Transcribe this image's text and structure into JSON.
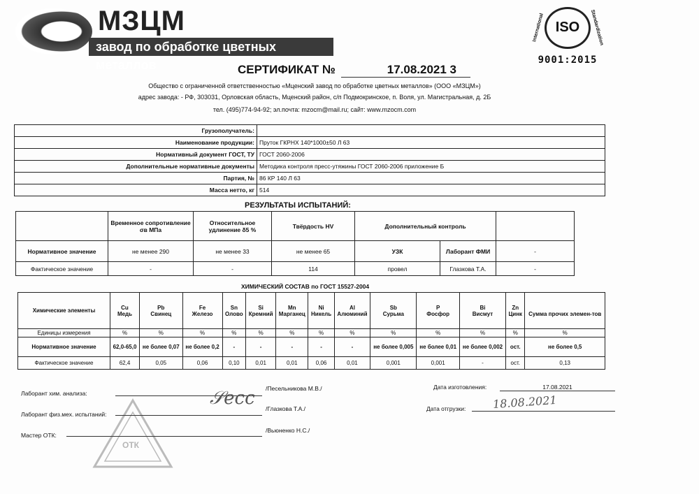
{
  "logo": {
    "brand": "МЗЦМ",
    "tagline": "завод по обработке цветных металлов"
  },
  "iso": {
    "mark": "ISO",
    "ring_left": "International",
    "ring_right": "Standardization",
    "standard": "9001:2015"
  },
  "header": {
    "title": "СЕРТИФИКАТ №",
    "number": "17.08.2021  3",
    "company": "Общество с ограниченной ответственностью «Мценский завод по обработке цветных металлов» (ООО «МЗЦМ»)",
    "address": "адрес завода: - РФ, 303031, Орловская область, Мценский район,  с/п Подмокринское, п. Воля, ул. Магистральная, д. 2Б",
    "contacts": "тел. (495)774-94-92; эл.почта: mzocm@mail.ru; сайт: www.mzocm.com"
  },
  "info": [
    {
      "label": "Грузополучатель:",
      "value": ""
    },
    {
      "label": "Наименование продукции:",
      "value": "Пруток ГКРНХ 140*1000±50 Л 63"
    },
    {
      "label": "Нормативный документ ГОСТ, ТУ",
      "value": "ГОСТ 2060-2006"
    },
    {
      "label": "Дополнительные нормативные документы",
      "value": "Методика контроля пресс-утяжины ГОСТ 2060-2006 приложение Б"
    },
    {
      "label": "Партия, №",
      "value": "86 КР 140 Л 63"
    },
    {
      "label": "Масса нетто, кг",
      "value": "514"
    }
  ],
  "results": {
    "title": "РЕЗУЛЬТАТЫ ИСПЫТАНИЙ:",
    "headers": [
      "Временное сопротивление σв МПа",
      "Относительное удлинение δ5 %",
      "Твёрдость HV",
      "Дополнительный контроль",
      ""
    ],
    "rows": [
      {
        "label": "Нормативное значение",
        "cells": [
          "не менее 290",
          "не менее 33",
          "не менее  65",
          "УЗК",
          "Лаборант ФМИ",
          "-"
        ]
      },
      {
        "label": "Фактическое значение",
        "cells": [
          "-",
          "-",
          "114",
          "провел",
          "Глазкова Т.А.",
          "-"
        ]
      }
    ]
  },
  "chem": {
    "title": "ХИМИЧЕСКИЙ СОСТАВ по ГОСТ 15527-2004",
    "row_header": "Химические элементы",
    "elements": [
      {
        "sym": "Cu",
        "name": "Медь"
      },
      {
        "sym": "Pb",
        "name": "Свинец"
      },
      {
        "sym": "Fe",
        "name": "Железо"
      },
      {
        "sym": "Sn",
        "name": "Олово"
      },
      {
        "sym": "Si",
        "name": "Кремний"
      },
      {
        "sym": "Mn",
        "name": "Марганец"
      },
      {
        "sym": "Ni",
        "name": "Никель"
      },
      {
        "sym": "Al",
        "name": "Алюминий"
      },
      {
        "sym": "Sb",
        "name": "Сурьма"
      },
      {
        "sym": "P",
        "name": "Фосфор"
      },
      {
        "sym": "Bi",
        "name": "Висмут"
      },
      {
        "sym": "Zn",
        "name": "Цинк"
      },
      {
        "sym": "",
        "name": "Сумма прочих элемен-тов"
      }
    ],
    "units_label": "Единицы измерения",
    "units": [
      "%",
      "%",
      "%",
      "%",
      "%",
      "%",
      "%",
      "%",
      "%",
      "%",
      "%",
      "%",
      "%"
    ],
    "norm_label": "Нормативное значение",
    "norm": [
      "62,0-65,0",
      "не более 0,07",
      "не более 0,2",
      "-",
      "-",
      "-",
      "-",
      "-",
      "не более 0,005",
      "не более 0,01",
      "не более 0,002",
      "ост.",
      "не более 0,5"
    ],
    "actual_label": "Фактическое значение",
    "actual": [
      "62,4",
      "0,05",
      "0,06",
      "0,10",
      "0,01",
      "0,01",
      "0,06",
      "0,01",
      "0,001",
      "0,001",
      "-",
      "ост.",
      "0,13"
    ]
  },
  "signatures": {
    "chem_lab_label": "Лаборант хим. анализа:",
    "chem_lab_name": "/Песельникова М.В./",
    "phys_lab_label": "Лаборант физ.мех. испытаний:",
    "phys_lab_name": "/Глазкова Т.А./",
    "qc_label": "Мастер ОТК:",
    "qc_name": "/Вьюненко Н.С./",
    "made_label": "Дата изготовления:",
    "made_date": "17.08.2021",
    "ship_label": "Дата отгрузки:",
    "ship_handwritten": "18.08.2021",
    "stamp_text": "ОТК"
  }
}
